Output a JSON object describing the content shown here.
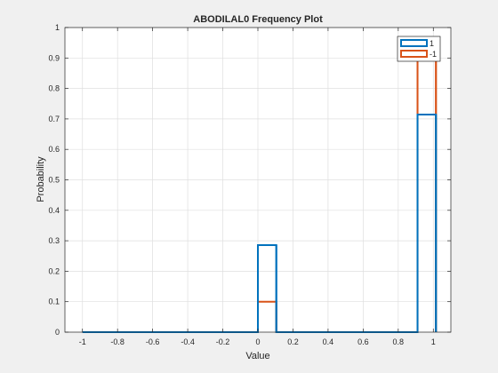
{
  "chart_data": {
    "type": "histogram-stairs",
    "title": "ABODILAL0 Frequency Plot",
    "xlabel": "Value",
    "ylabel": "Probability",
    "xlim": [
      -1.1,
      1.1
    ],
    "ylim": [
      0,
      1
    ],
    "grid": true,
    "legend_placement": "top-right",
    "xticks": [
      -1,
      -0.8,
      -0.6,
      -0.4,
      -0.2,
      0,
      0.2,
      0.4,
      0.6,
      0.8,
      1
    ],
    "xtick_labels": [
      "-1",
      "-0.8",
      "-0.6",
      "-0.4",
      "-0.2",
      "0",
      "0.2",
      "0.4",
      "0.6",
      "0.8",
      "1"
    ],
    "yticks": [
      0,
      0.1,
      0.2,
      0.3,
      0.4,
      0.5,
      0.6,
      0.7,
      0.8,
      0.9,
      1
    ],
    "ytick_labels": [
      "0",
      "0.1",
      "0.2",
      "0.3",
      "0.4",
      "0.5",
      "0.6",
      "0.7",
      "0.8",
      "0.9",
      "1"
    ],
    "bin_edges": [
      -1.0,
      0.0,
      0.105,
      0.91,
      1.015
    ],
    "series": [
      {
        "name": "1",
        "color": "#0072BD",
        "values": [
          0,
          0.2857,
          0,
          0.7143
        ]
      },
      {
        "name": "-1",
        "color": "#D95319",
        "values": [
          0,
          0.1,
          0,
          0.9
        ]
      }
    ]
  }
}
